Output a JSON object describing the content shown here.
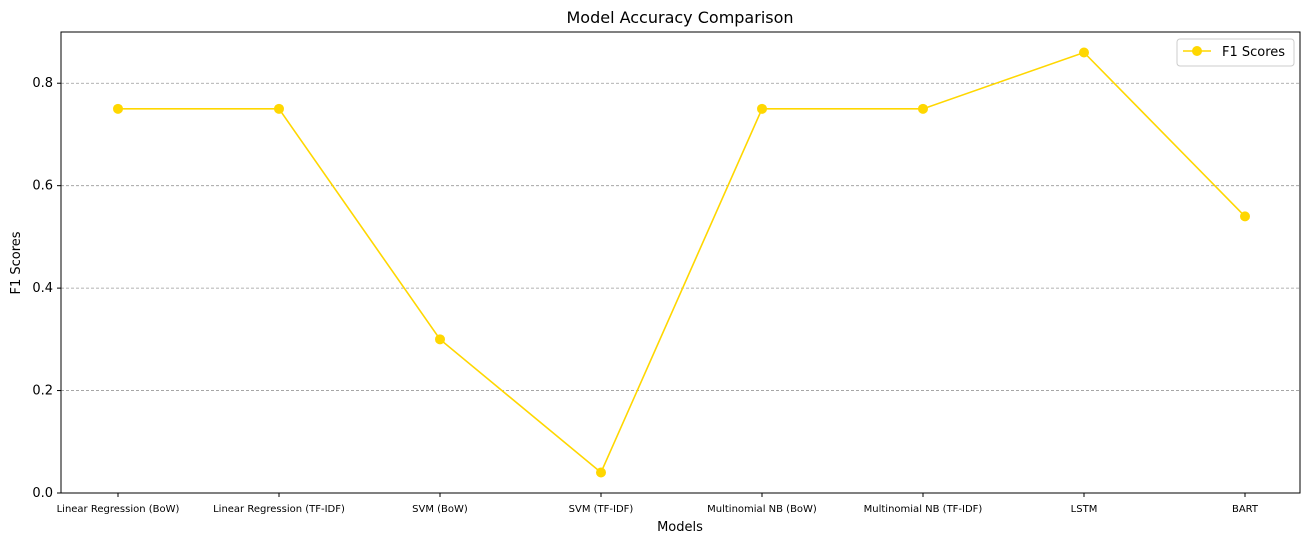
{
  "chart_data": {
    "type": "line",
    "title": "Model Accuracy Comparison",
    "xlabel": "Models",
    "ylabel": "F1 Scores",
    "categories": [
      "Linear Regression (BoW)",
      "Linear Regression (TF-IDF)",
      "SVM (BoW)",
      "SVM (TF-IDF)",
      "Multinomial NB (BoW)",
      "Multinomial NB (TF-IDF)",
      "LSTM",
      "BART"
    ],
    "series": [
      {
        "name": "F1 Scores",
        "color": "#FFD700",
        "marker": "circle",
        "values": [
          0.75,
          0.75,
          0.3,
          0.04,
          0.75,
          0.75,
          0.86,
          0.54
        ]
      }
    ],
    "ylim": [
      0,
      0.9
    ],
    "yticks": [
      "0.0",
      "0.2",
      "0.4",
      "0.6",
      "0.8"
    ],
    "ytick_values": [
      0.0,
      0.2,
      0.4,
      0.6,
      0.8
    ],
    "grid": "y-dashed",
    "legend_position": "top-right"
  }
}
